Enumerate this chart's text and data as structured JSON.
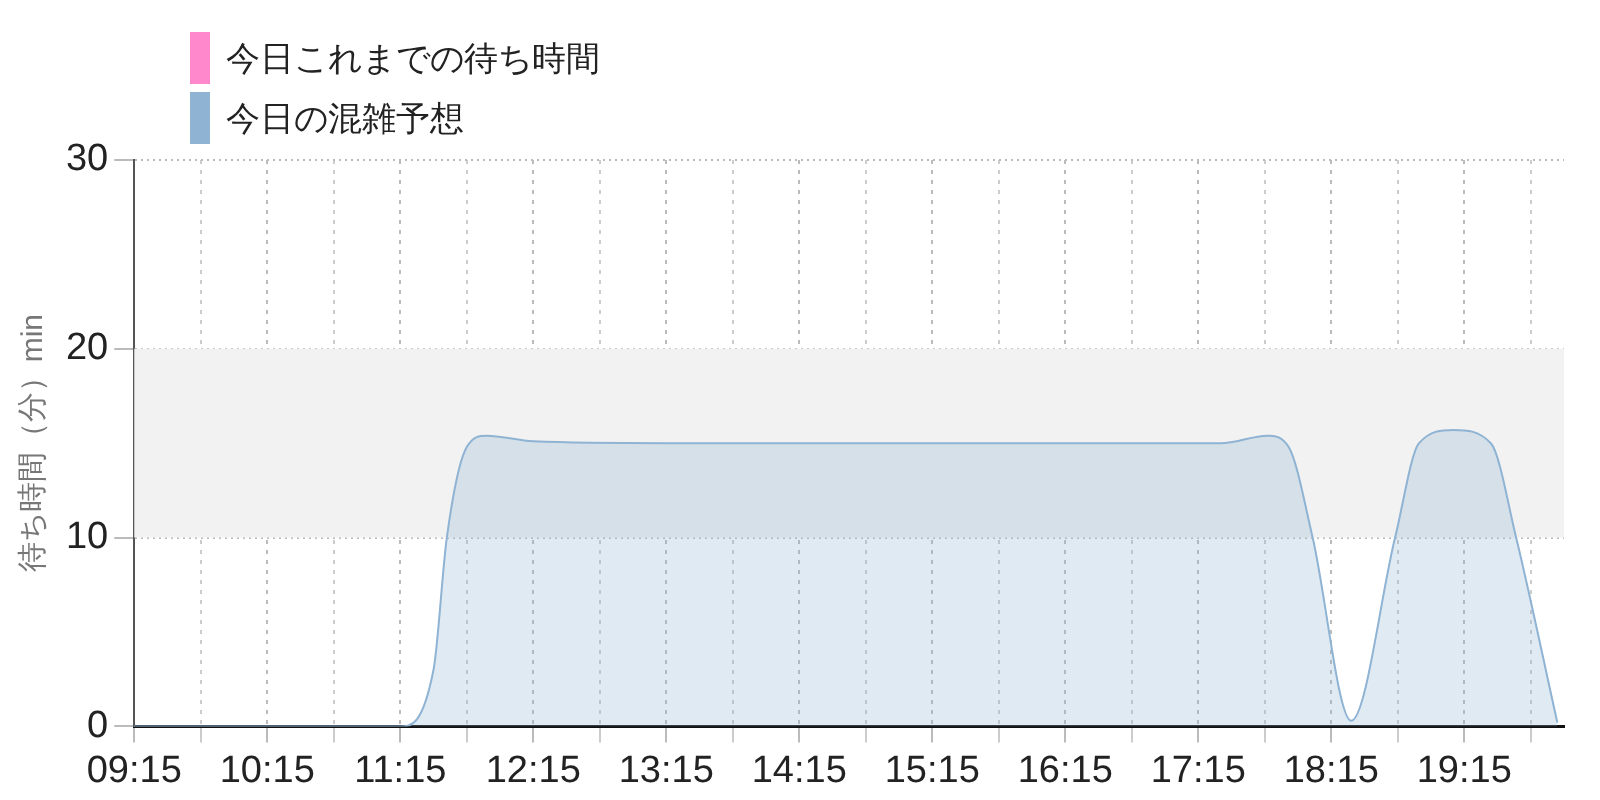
{
  "chart_data": {
    "type": "area",
    "ylabel": "待ち時間（分）min",
    "x": [
      9.25,
      10.0,
      10.75,
      11.25,
      11.5,
      11.6,
      11.75,
      11.9,
      12.25,
      13.25,
      14.25,
      15.25,
      16.25,
      17.25,
      17.42,
      17.77,
      17.93,
      18.11,
      18.4,
      18.73,
      18.91,
      19.17,
      19.45,
      19.64,
      19.95
    ],
    "series": [
      {
        "name": "今日これまでの待ち時間",
        "color": "#ff88cc",
        "values": [
          null,
          null,
          null,
          null,
          null,
          null,
          null,
          null,
          null,
          null,
          null,
          null,
          null,
          null,
          null,
          null,
          null,
          null,
          null,
          null,
          null,
          null,
          null,
          null,
          null
        ]
      },
      {
        "name": "今日の混雑予想",
        "color": "#8fb3d3",
        "values": [
          0,
          0,
          0,
          0,
          3,
          10,
          14.8,
          15.4,
          15.1,
          15,
          15,
          15,
          15,
          15,
          15,
          15.4,
          14.8,
          10,
          0.3,
          10,
          15,
          15.7,
          15,
          10,
          0.2
        ]
      }
    ],
    "xlim": [
      9.25,
      20
    ],
    "xticks": [
      {
        "value": 9.25,
        "label": "09:15"
      },
      {
        "value": 9.75,
        "label": null
      },
      {
        "value": 10.25,
        "label": "10:15"
      },
      {
        "value": 10.75,
        "label": null
      },
      {
        "value": 11.25,
        "label": "11:15"
      },
      {
        "value": 11.75,
        "label": null
      },
      {
        "value": 12.25,
        "label": "12:15"
      },
      {
        "value": 12.75,
        "label": null
      },
      {
        "value": 13.25,
        "label": "13:15"
      },
      {
        "value": 13.75,
        "label": null
      },
      {
        "value": 14.25,
        "label": "14:15"
      },
      {
        "value": 14.75,
        "label": null
      },
      {
        "value": 15.25,
        "label": "15:15"
      },
      {
        "value": 15.75,
        "label": null
      },
      {
        "value": 16.25,
        "label": "16:15"
      },
      {
        "value": 16.75,
        "label": null
      },
      {
        "value": 17.25,
        "label": "17:15"
      },
      {
        "value": 17.75,
        "label": null
      },
      {
        "value": 18.25,
        "label": "18:15"
      },
      {
        "value": 18.75,
        "label": null
      },
      {
        "value": 19.25,
        "label": "19:15"
      },
      {
        "value": 19.75,
        "label": null
      }
    ],
    "ylim": [
      0,
      30
    ],
    "yticks": [
      0,
      10,
      20,
      30
    ],
    "bands": [
      {
        "axis": "y",
        "from": 10,
        "to": 20,
        "color": "#f2f2f2"
      }
    ],
    "grid": true,
    "legend": "top left",
    "marker": "none"
  }
}
